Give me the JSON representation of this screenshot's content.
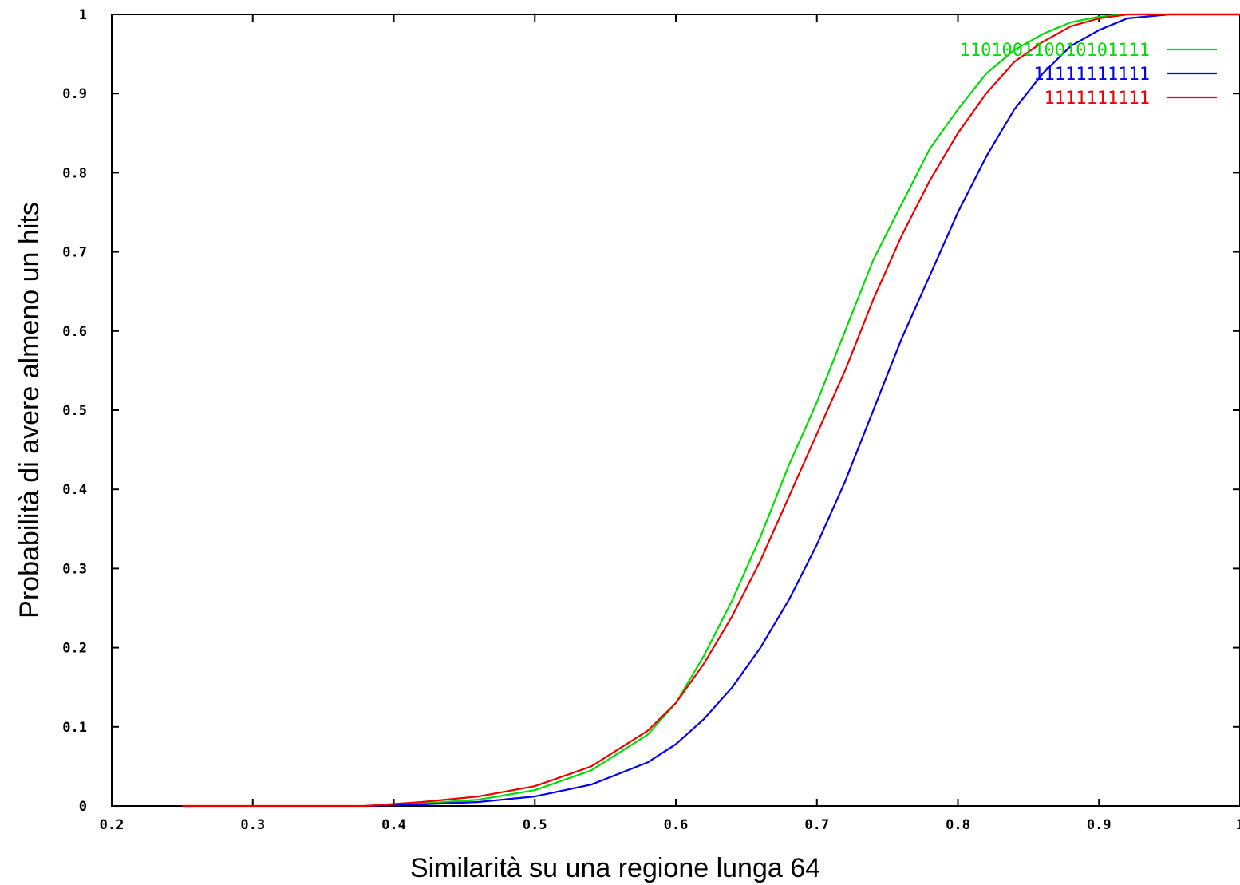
{
  "chart_data": {
    "type": "line",
    "title": "",
    "xlabel": "Similarità su una regione lunga 64",
    "ylabel": "Probabilità di avere almeno un hits",
    "xlim": [
      0.2,
      1.0
    ],
    "ylim": [
      0,
      1
    ],
    "x_ticks": [
      "0.2",
      "0.3",
      "0.4",
      "0.5",
      "0.6",
      "0.7",
      "0.8",
      "0.9",
      "1"
    ],
    "y_ticks": [
      "0",
      "0.1",
      "0.2",
      "0.3",
      "0.4",
      "0.5",
      "0.6",
      "0.7",
      "0.8",
      "0.9",
      "1"
    ],
    "grid": false,
    "legend_position": "top-right",
    "series": [
      {
        "name": "110100110010101111",
        "color": "#00dd00",
        "x": [
          0.38,
          0.42,
          0.46,
          0.5,
          0.54,
          0.58,
          0.6,
          0.62,
          0.64,
          0.66,
          0.68,
          0.7,
          0.72,
          0.74,
          0.76,
          0.78,
          0.8,
          0.82,
          0.84,
          0.86,
          0.88,
          0.9,
          0.92,
          0.95
        ],
        "y": [
          0.0,
          0.003,
          0.008,
          0.02,
          0.045,
          0.09,
          0.13,
          0.19,
          0.26,
          0.34,
          0.43,
          0.51,
          0.6,
          0.69,
          0.76,
          0.83,
          0.88,
          0.925,
          0.955,
          0.975,
          0.99,
          0.997,
          1.0,
          1.0
        ]
      },
      {
        "name": "11111111111",
        "color": "#0000ee",
        "x": [
          0.38,
          0.42,
          0.46,
          0.5,
          0.54,
          0.58,
          0.6,
          0.62,
          0.64,
          0.66,
          0.68,
          0.7,
          0.72,
          0.74,
          0.76,
          0.78,
          0.8,
          0.82,
          0.84,
          0.86,
          0.88,
          0.9,
          0.92,
          0.95
        ],
        "y": [
          0.0,
          0.002,
          0.005,
          0.012,
          0.027,
          0.055,
          0.078,
          0.11,
          0.15,
          0.2,
          0.26,
          0.33,
          0.41,
          0.5,
          0.59,
          0.67,
          0.75,
          0.82,
          0.88,
          0.925,
          0.96,
          0.98,
          0.995,
          1.0
        ]
      },
      {
        "name": "1111111111",
        "color": "#ee0000",
        "x": [
          0.25,
          0.38,
          0.42,
          0.46,
          0.5,
          0.54,
          0.58,
          0.6,
          0.62,
          0.64,
          0.66,
          0.68,
          0.7,
          0.72,
          0.74,
          0.76,
          0.78,
          0.8,
          0.82,
          0.84,
          0.86,
          0.88,
          0.9,
          0.92,
          1.0
        ],
        "y": [
          0.0,
          0.0,
          0.005,
          0.012,
          0.025,
          0.05,
          0.095,
          0.13,
          0.18,
          0.24,
          0.31,
          0.39,
          0.47,
          0.55,
          0.64,
          0.72,
          0.79,
          0.85,
          0.9,
          0.94,
          0.965,
          0.985,
          0.995,
          1.0,
          1.0
        ]
      }
    ]
  }
}
